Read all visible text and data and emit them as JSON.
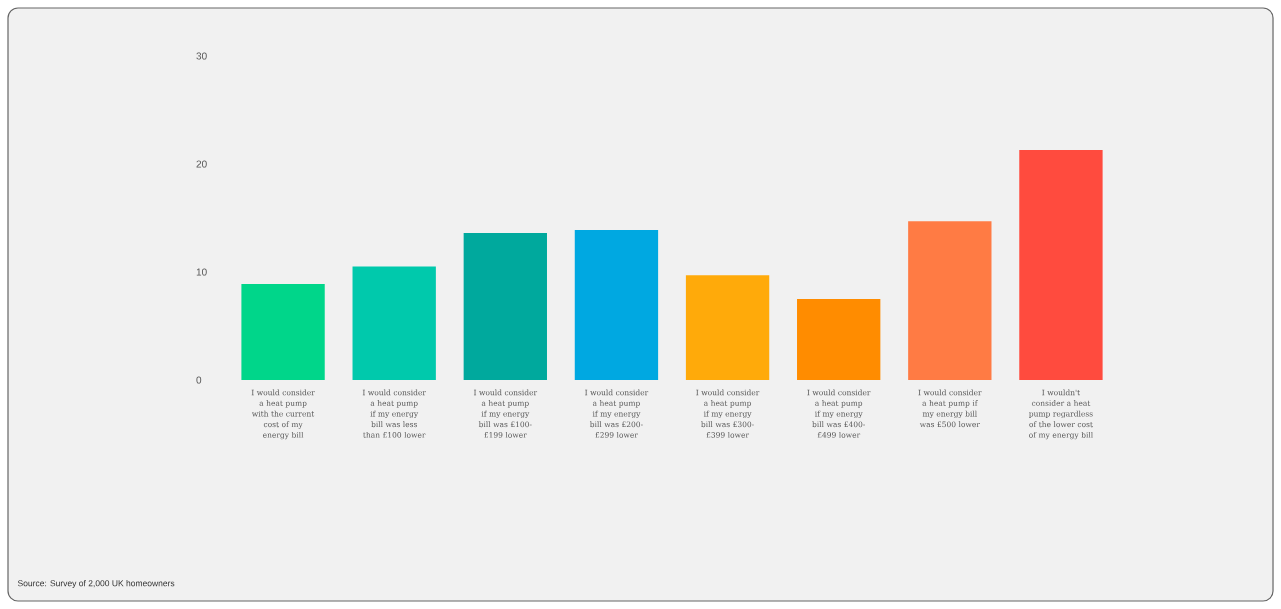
{
  "chart_data": {
    "type": "bar",
    "categories": [
      "I would consider a heat pump with the current cost of my energy bill",
      "I would consider a heat pump if my energy bill was less than £100 lower",
      "I would consider a heat pump if my energy bill was £100-£199 lower",
      "I would consider a heat pump if my energy bill was £200-£299 lower",
      "I would consider a heat pump if my energy bill was £300-£399 lower",
      "I would consider a heat pump if my energy bill was £400-£499 lower",
      "I would consider a heat pump if my energy bill was £500 lower",
      "I wouldn't consider a heat pump regardless of the lower cost of my energy bill"
    ],
    "values": [
      8.9,
      10.5,
      13.6,
      13.9,
      9.7,
      7.5,
      14.7,
      21.3
    ],
    "colors": [
      "#00d68a",
      "#00c9ac",
      "#00a99d",
      "#00a8e1",
      "#ffaa0a",
      "#ff8c00",
      "#ff7b44",
      "#ff4b3e"
    ],
    "ylim": [
      0,
      30
    ],
    "yticks": [
      0,
      10,
      20,
      30
    ],
    "annotations": [
      "Source: Survey of 2,000 UK homeowners"
    ]
  }
}
